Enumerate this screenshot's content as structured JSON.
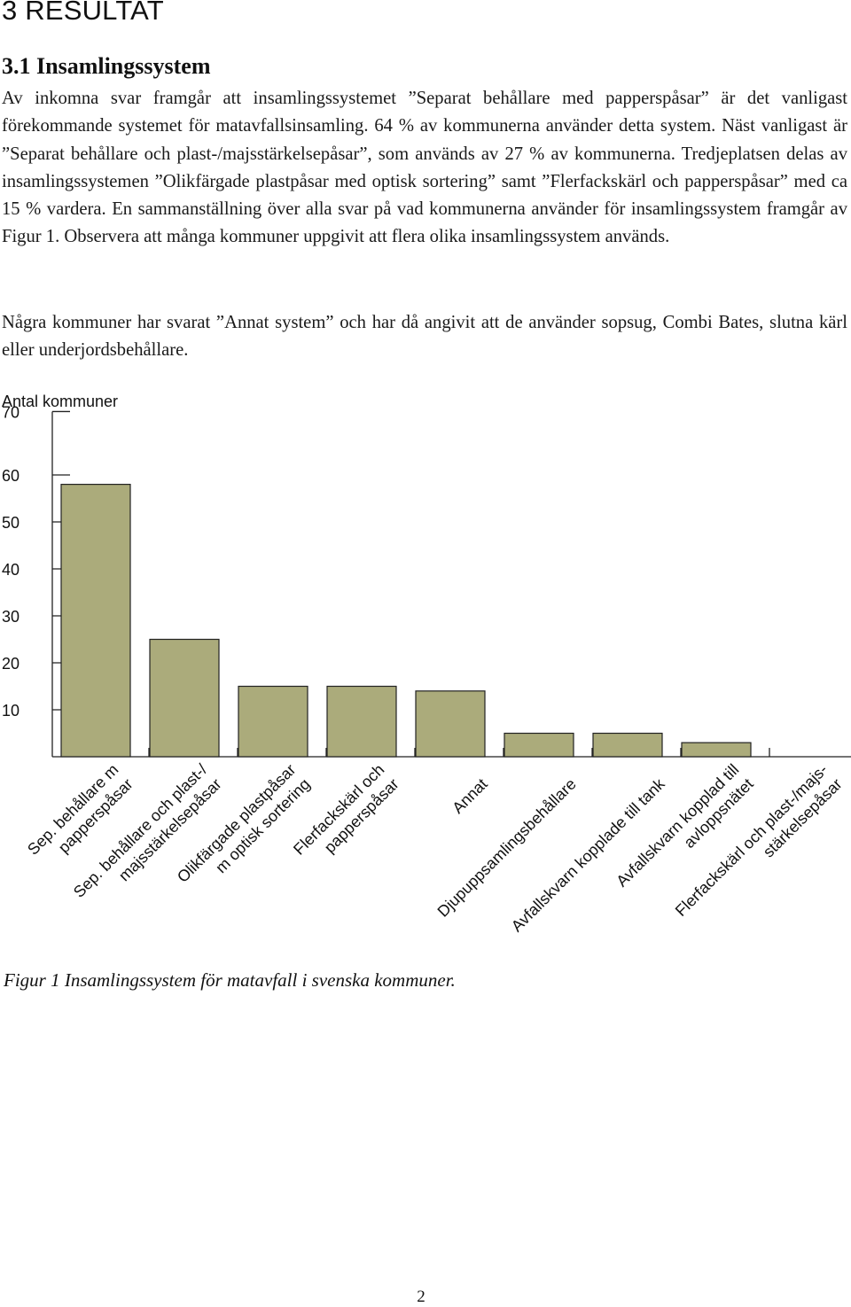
{
  "section": {
    "heading": "3 RESULTAT"
  },
  "subsection": {
    "heading": "3.1 Insamlingssystem"
  },
  "paragraphs": [
    "Av inkomna svar framgår att insamlingssystemet ”Separat behållare med papperspåsar” är det vanligast förekommande systemet för matavfallsinsamling. 64 % av kommunerna använder detta system. Näst vanligast är ”Separat behållare och plast-/majsstärkelsepåsar”, som används av 27 % av kommunerna. Tredjeplatsen delas av insamlingssystemen ”Olikfärgade plastpåsar med optisk sortering” samt ”Flerfackskärl och papperspåsar” med ca 15 % vardera. En sammanställning över alla svar på vad kommunerna använder för insamlingssystem framgår av Figur 1. Observera att många kommuner uppgivit att flera olika insamlingssystem används.",
    "Några kommuner har svarat ”Annat system” och har då angivit att de använder sopsug, Combi Bates, slutna kärl eller underjordsbehållare."
  ],
  "chart_data": {
    "type": "bar",
    "title": "",
    "ylabel": "Antal kommuner",
    "xlabel": "",
    "ylim": [
      0,
      70
    ],
    "yticks": [
      10,
      20,
      30,
      40,
      50,
      60,
      70
    ],
    "bar_color": "#abab7b",
    "categories": [
      [
        "Sep. behållare m",
        "papperspåsar"
      ],
      [
        "Sep. behållare och plast-/",
        "majsstärkelsepåsar"
      ],
      [
        "Olikfärgade plastpåsar",
        "m optisk sortering"
      ],
      [
        "Flerfackskärl och",
        "papperspåsar"
      ],
      [
        "Annat"
      ],
      [
        "Djupuppsamlingsbehållare"
      ],
      [
        "Avfallskvarn kopplade till tank"
      ],
      [
        "Avfallskvarn kopplad till",
        "avloppsnätet"
      ],
      [
        "Flerfackskärl och plast-/majs-",
        "stärkelsepåsar"
      ]
    ],
    "values": [
      58,
      25,
      15,
      15,
      14,
      5,
      5,
      3,
      0
    ]
  },
  "caption": "Figur 1 Insamlingssystem för matavfall i svenska kommuner.",
  "page_number": "2"
}
